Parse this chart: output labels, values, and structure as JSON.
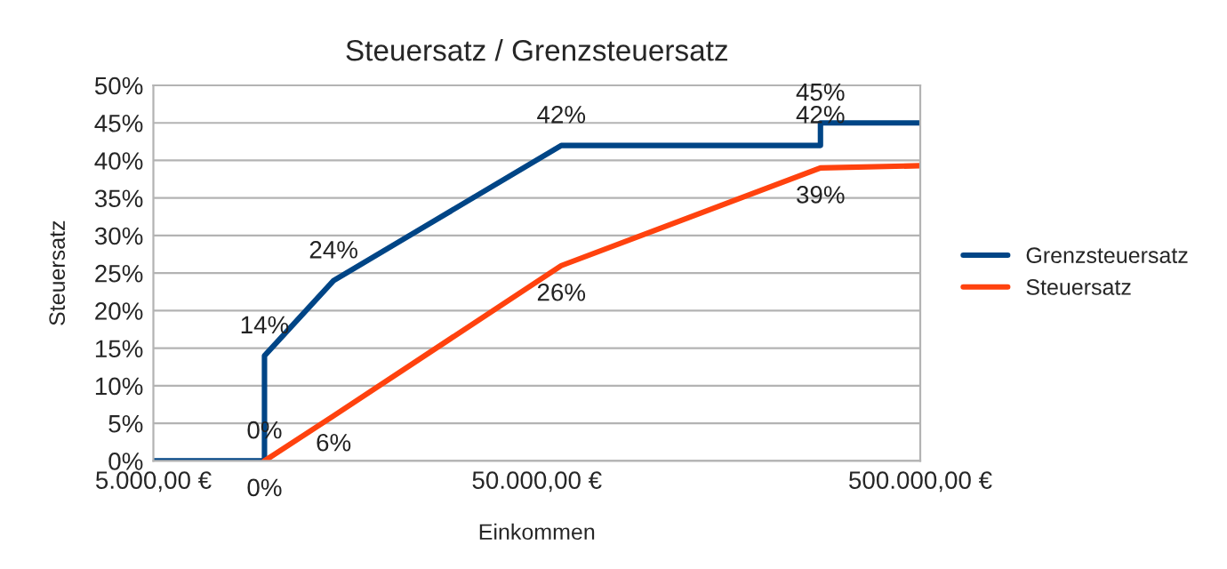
{
  "chart_data": {
    "type": "line",
    "title": "Steuersatz / Grenzsteuersatz",
    "xlabel": "Einkommen",
    "ylabel": "Steuersatz",
    "series": [
      {
        "name": "Grenzsteuersatz",
        "color": "#004586",
        "x": [
          5000,
          9744,
          9744,
          14753,
          57918,
          274612,
          274612,
          500000
        ],
        "values": [
          0,
          0,
          14,
          24,
          42,
          42,
          45,
          45
        ],
        "value_labels": [
          null,
          "0%",
          "14%",
          "24%",
          "42%",
          "42%",
          "45%",
          null
        ]
      },
      {
        "name": "Steuersatz",
        "color": "#ff420e",
        "x": [
          9744,
          14753,
          57918,
          274612,
          500000
        ],
        "values": [
          0,
          6,
          26,
          39,
          39.3
        ],
        "value_labels": [
          "0%",
          "6%",
          "26%",
          "39%",
          null
        ]
      }
    ],
    "log": "x",
    "xlim": [
      5000,
      500000
    ],
    "xticks": [
      {
        "value": 5000,
        "label": "5.000,00 €"
      },
      {
        "value": 50000,
        "label": "50.000,00 €"
      },
      {
        "value": 500000,
        "label": "500.000,00 €"
      }
    ],
    "ylim": [
      0,
      50
    ],
    "yticks": [
      {
        "value": 0,
        "label": "0%"
      },
      {
        "value": 5,
        "label": "5%"
      },
      {
        "value": 10,
        "label": "10%"
      },
      {
        "value": 15,
        "label": "15%"
      },
      {
        "value": 20,
        "label": "20%"
      },
      {
        "value": 25,
        "label": "25%"
      },
      {
        "value": 30,
        "label": "30%"
      },
      {
        "value": 35,
        "label": "35%"
      },
      {
        "value": 40,
        "label": "40%"
      },
      {
        "value": 45,
        "label": "45%"
      },
      {
        "value": 50,
        "label": "50%"
      }
    ],
    "grid": "y",
    "legend": "right",
    "marker": "none",
    "line_style": "solid"
  }
}
